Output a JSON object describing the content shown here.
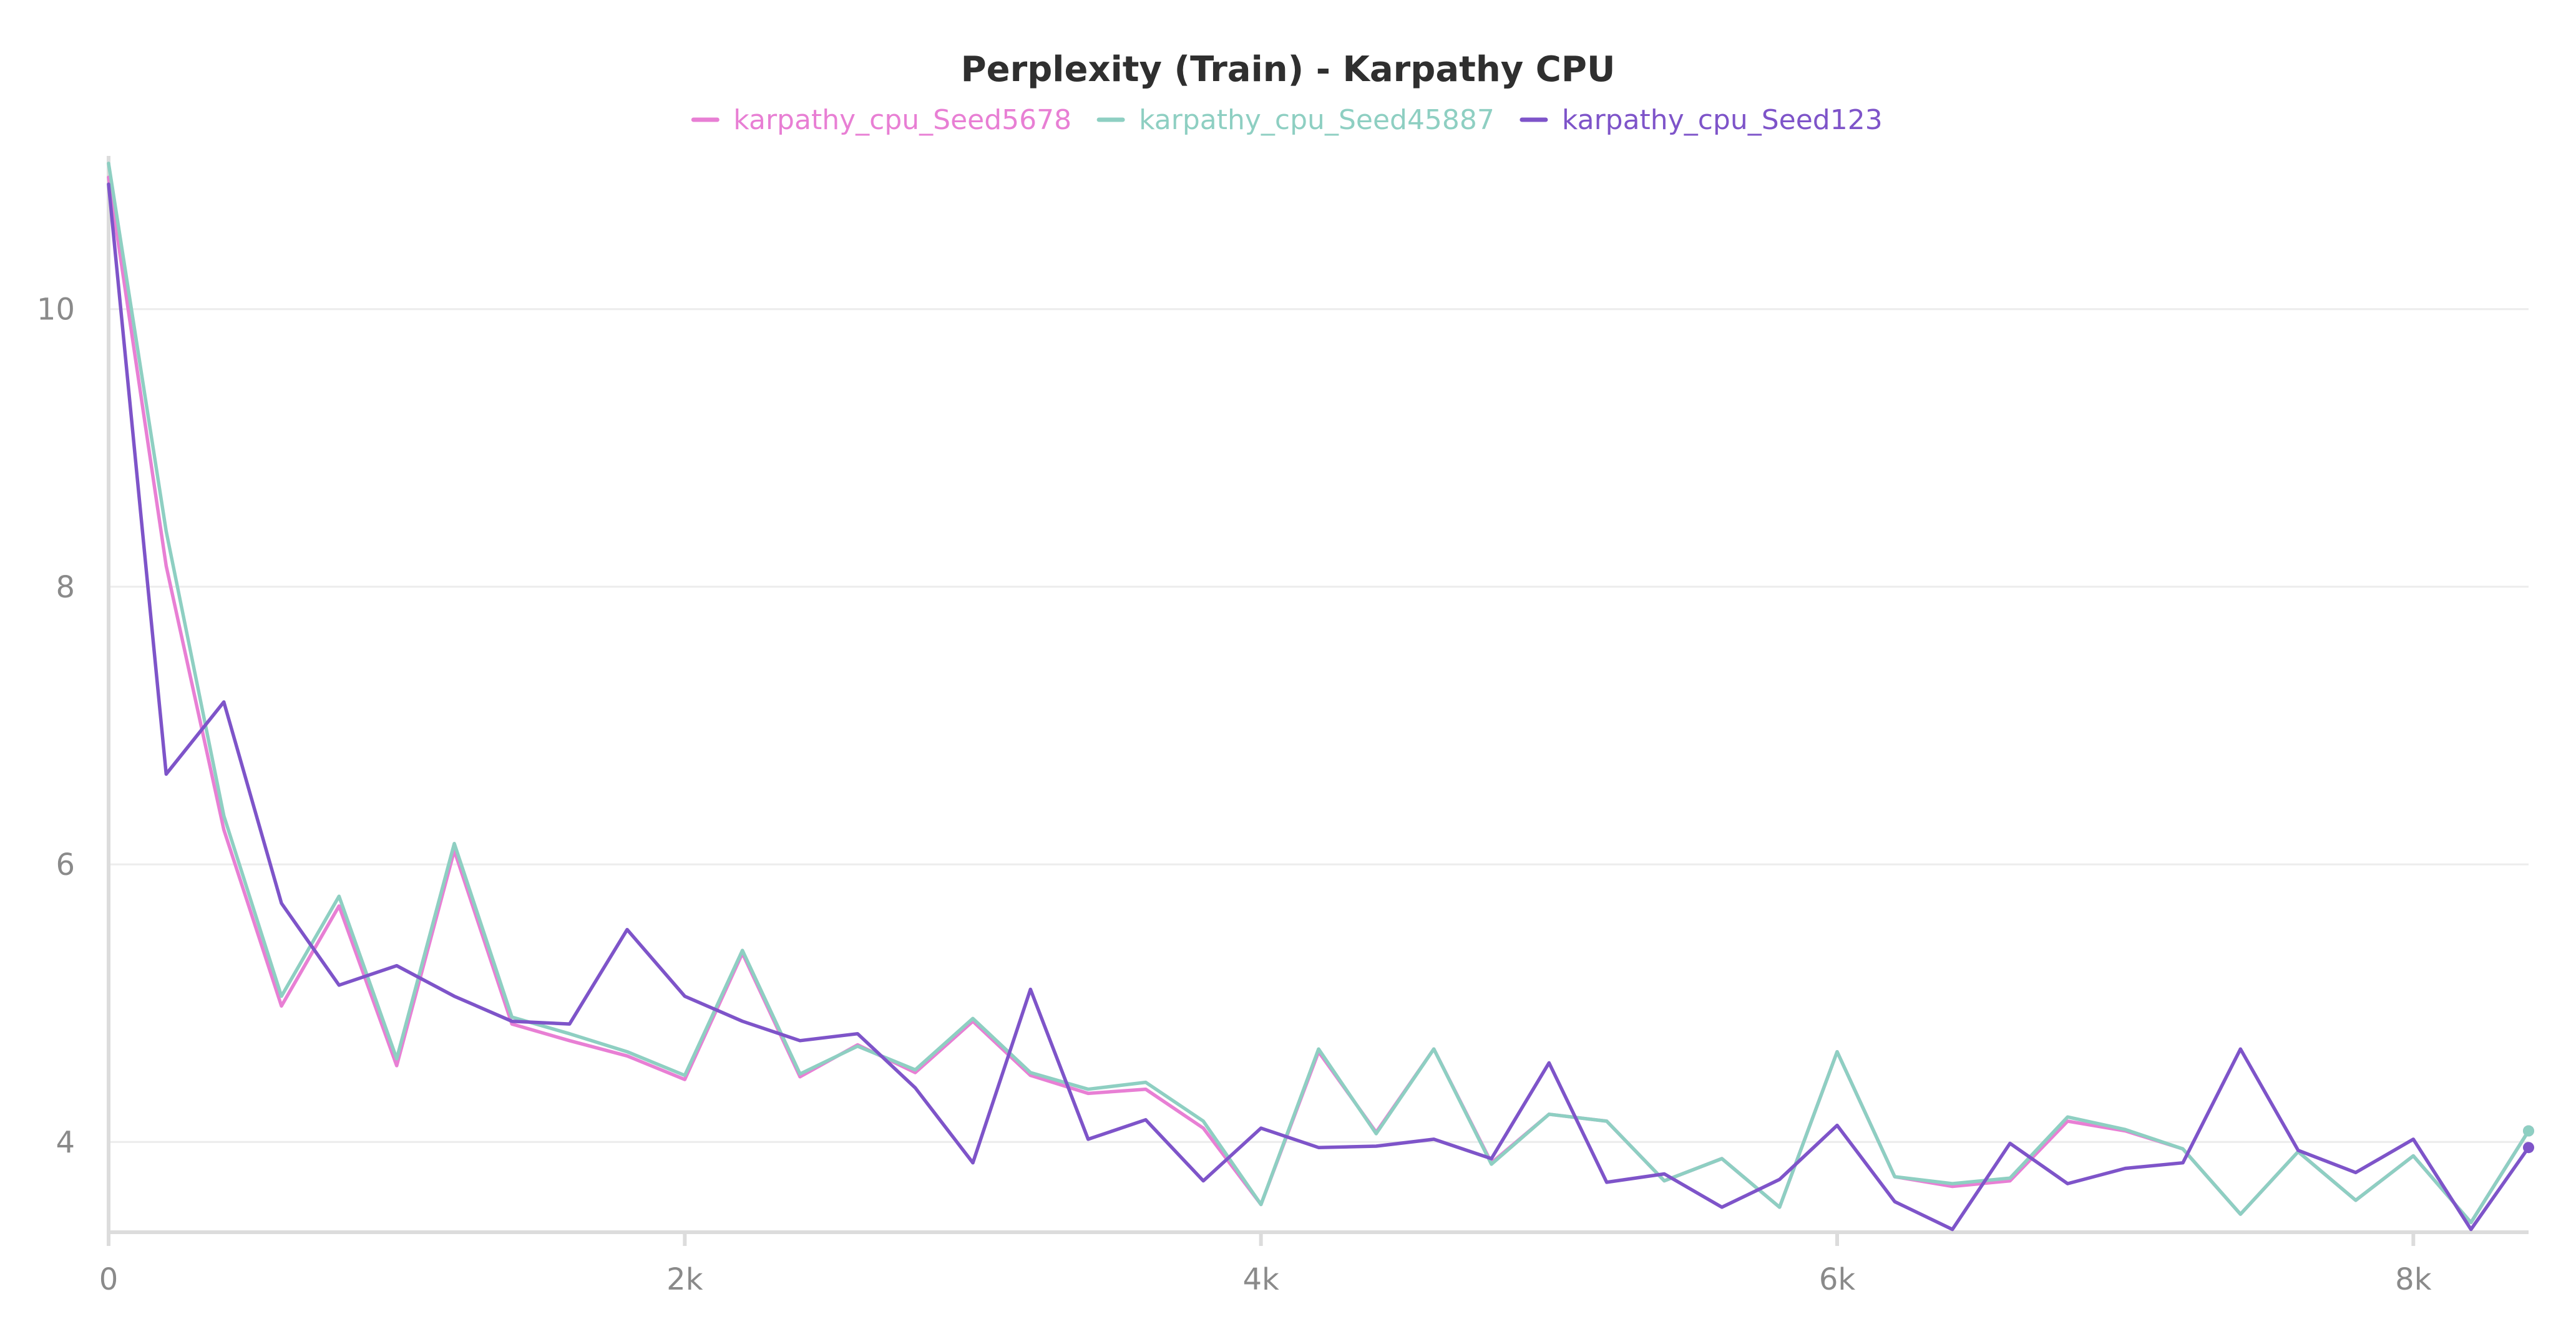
{
  "chart_data": {
    "type": "line",
    "title": "Perplexity (Train) - Karpathy CPU",
    "xlabel": "",
    "ylabel": "",
    "xlim": [
      0,
      8400
    ],
    "ylim": [
      3.35,
      11.05
    ],
    "legend_position": "top-center",
    "grid": true,
    "x_ticks": [
      {
        "value": 0,
        "label": "0"
      },
      {
        "value": 2000,
        "label": "2k"
      },
      {
        "value": 4000,
        "label": "4k"
      },
      {
        "value": 6000,
        "label": "6k"
      },
      {
        "value": 8000,
        "label": "8k"
      }
    ],
    "y_ticks": [
      {
        "value": 4,
        "label": "4"
      },
      {
        "value": 6,
        "label": "6"
      },
      {
        "value": 8,
        "label": "8"
      },
      {
        "value": 10,
        "label": "10"
      }
    ],
    "x": [
      0,
      200,
      400,
      600,
      800,
      1000,
      1200,
      1400,
      1600,
      1800,
      2000,
      2200,
      2400,
      2600,
      2800,
      3000,
      3200,
      3400,
      3600,
      3800,
      4000,
      4200,
      4400,
      4600,
      4800,
      5000,
      5200,
      5400,
      5600,
      5800,
      6000,
      6200,
      6400,
      6600,
      6800,
      7000,
      7200,
      7400,
      7600,
      7800,
      8000,
      8200,
      8400
    ],
    "series": [
      {
        "name": "karpathy_cpu_Seed5678",
        "color": "#e87fd4",
        "values": [
          10.95,
          8.15,
          6.25,
          4.98,
          5.7,
          4.55,
          6.1,
          4.85,
          4.73,
          4.62,
          4.45,
          5.36,
          4.47,
          4.7,
          4.5,
          4.87,
          4.48,
          4.35,
          4.38,
          4.1,
          3.55,
          4.65,
          4.07,
          4.67,
          3.85,
          4.2,
          4.15,
          3.72,
          3.88,
          3.53,
          4.65,
          3.75,
          3.68,
          3.72,
          4.15,
          4.08,
          3.95,
          3.48,
          3.93,
          3.58,
          3.9,
          3.42,
          4.08
        ]
      },
      {
        "name": "karpathy_cpu_Seed45887",
        "color": "#8ecfc2",
        "values": [
          11.05,
          8.4,
          6.35,
          5.05,
          5.77,
          4.6,
          6.15,
          4.9,
          4.78,
          4.65,
          4.48,
          5.38,
          4.49,
          4.69,
          4.52,
          4.89,
          4.5,
          4.38,
          4.43,
          4.15,
          3.55,
          4.67,
          4.06,
          4.67,
          3.84,
          4.2,
          4.15,
          3.72,
          3.88,
          3.53,
          4.65,
          3.75,
          3.7,
          3.74,
          4.18,
          4.09,
          3.95,
          3.48,
          3.93,
          3.58,
          3.9,
          3.42,
          4.08
        ]
      },
      {
        "name": "karpathy_cpu_Seed123",
        "color": "#7e54c9",
        "values": [
          10.9,
          6.65,
          7.17,
          5.72,
          5.13,
          5.27,
          5.05,
          4.87,
          4.85,
          5.53,
          5.05,
          4.87,
          4.73,
          4.78,
          4.39,
          3.85,
          5.1,
          4.02,
          4.16,
          3.72,
          4.1,
          3.96,
          3.97,
          4.02,
          3.88,
          4.57,
          3.71,
          3.77,
          3.53,
          3.73,
          4.12,
          3.57,
          3.37,
          3.99,
          3.7,
          3.81,
          3.85,
          4.67,
          3.94,
          3.78,
          4.02,
          3.37,
          3.96
        ]
      }
    ]
  }
}
